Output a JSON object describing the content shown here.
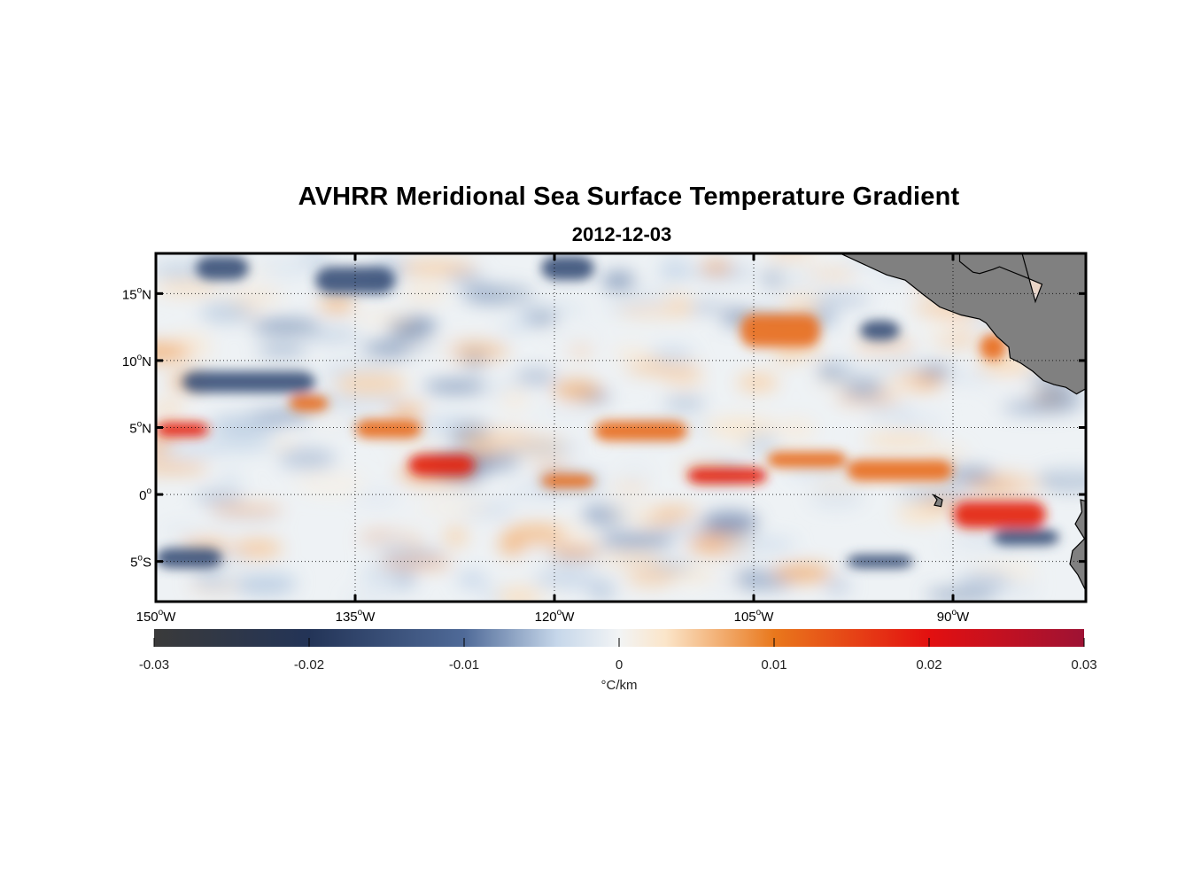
{
  "title": "AVHRR Meridional Sea Surface Temperature Gradient",
  "subtitle": "2012-12-03",
  "map": {
    "lon_range": [
      -150,
      -80
    ],
    "lat_range": [
      -8,
      18
    ],
    "grid": true,
    "land_color": "#808080",
    "lon_ticks": [
      {
        "value": -150,
        "deg": "150",
        "hemi": "W"
      },
      {
        "value": -135,
        "deg": "135",
        "hemi": "W"
      },
      {
        "value": -120,
        "deg": "120",
        "hemi": "W"
      },
      {
        "value": -105,
        "deg": "105",
        "hemi": "W"
      },
      {
        "value": -90,
        "deg": "90",
        "hemi": "W"
      }
    ],
    "lat_ticks": [
      {
        "value": 15,
        "deg": "15",
        "hemi": "N"
      },
      {
        "value": 10,
        "deg": "10",
        "hemi": "N"
      },
      {
        "value": 5,
        "deg": "5",
        "hemi": "N"
      },
      {
        "value": 0,
        "deg": "0",
        "hemi": ""
      },
      {
        "value": -5,
        "deg": "5",
        "hemi": "S"
      }
    ],
    "warm_front_bands": [
      {
        "lon": [
          -150,
          -146
        ],
        "lat": [
          4.3,
          5.4
        ]
      },
      {
        "lon": [
          -140,
          -137
        ],
        "lat": [
          6.2,
          7.4
        ]
      },
      {
        "lon": [
          -135,
          -130
        ],
        "lat": [
          4.2,
          5.6
        ]
      },
      {
        "lon": [
          -131,
          -126
        ],
        "lat": [
          1.4,
          3.0
        ]
      },
      {
        "lon": [
          -121,
          -117
        ],
        "lat": [
          0.5,
          1.5
        ]
      },
      {
        "lon": [
          -117,
          -110
        ],
        "lat": [
          4.0,
          5.5
        ]
      },
      {
        "lon": [
          -110,
          -104
        ],
        "lat": [
          0.8,
          2.0
        ]
      },
      {
        "lon": [
          -104,
          -98
        ],
        "lat": [
          2.0,
          3.2
        ]
      },
      {
        "lon": [
          -98,
          -90
        ],
        "lat": [
          1.0,
          2.6
        ]
      },
      {
        "lon": [
          -90,
          -83
        ],
        "lat": [
          -2.5,
          -0.5
        ]
      },
      {
        "lon": [
          -106,
          -100
        ],
        "lat": [
          11.0,
          13.5
        ]
      },
      {
        "lon": [
          -88,
          -86
        ],
        "lat": [
          10.0,
          12.0
        ]
      }
    ],
    "cold_front_bands": [
      {
        "lon": [
          -148,
          -138
        ],
        "lat": [
          7.6,
          9.2
        ]
      },
      {
        "lon": [
          -147,
          -143
        ],
        "lat": [
          16.0,
          17.8
        ]
      },
      {
        "lon": [
          -138,
          -132
        ],
        "lat": [
          15.0,
          17.0
        ]
      },
      {
        "lon": [
          -121,
          -117
        ],
        "lat": [
          16.0,
          17.8
        ]
      },
      {
        "lon": [
          -97,
          -94
        ],
        "lat": [
          11.5,
          13.0
        ]
      },
      {
        "lon": [
          -98,
          -93
        ],
        "lat": [
          -5.5,
          -4.5
        ]
      },
      {
        "lon": [
          -87,
          -82
        ],
        "lat": [
          -3.8,
          -2.6
        ]
      },
      {
        "lon": [
          -150,
          -145
        ],
        "lat": [
          -5.5,
          -4.0
        ]
      }
    ],
    "land_polygons": [
      {
        "name": "central-america",
        "points": [
          [
            -98.5,
            18
          ],
          [
            -95.0,
            16.4
          ],
          [
            -93.6,
            16.0
          ],
          [
            -92.2,
            14.9
          ],
          [
            -91.0,
            14.0
          ],
          [
            -89.4,
            13.4
          ],
          [
            -88.0,
            13.1
          ],
          [
            -87.5,
            12.8
          ],
          [
            -86.7,
            11.8
          ],
          [
            -85.8,
            11.0
          ],
          [
            -85.7,
            10.2
          ],
          [
            -84.9,
            9.8
          ],
          [
            -84.0,
            9.2
          ],
          [
            -83.2,
            8.5
          ],
          [
            -82.4,
            8.2
          ],
          [
            -81.5,
            8.0
          ],
          [
            -80.7,
            7.5
          ],
          [
            -80,
            7.9
          ],
          [
            -80,
            18
          ],
          [
            -89.5,
            18
          ],
          [
            -89.5,
            17.4
          ],
          [
            -88.5,
            16.6
          ],
          [
            -88.0,
            16.5
          ],
          [
            -87.0,
            16.8
          ],
          [
            -86.5,
            17.0
          ],
          [
            -84.5,
            16.2
          ],
          [
            -83.3,
            15.7
          ],
          [
            -83.8,
            14.4
          ],
          [
            -84.8,
            18
          ],
          [
            -86.0,
            18
          ],
          [
            -88.2,
            18
          ],
          [
            -89.2,
            18
          ]
        ]
      },
      {
        "name": "south-america",
        "points": [
          [
            -80,
            -0.5
          ],
          [
            -80.4,
            -0.4
          ],
          [
            -80.3,
            -1.3
          ],
          [
            -80.8,
            -2.2
          ],
          [
            -80.1,
            -3.3
          ],
          [
            -81.0,
            -4.2
          ],
          [
            -81.2,
            -5.2
          ],
          [
            -80.6,
            -6.0
          ],
          [
            -80.0,
            -7.2
          ],
          [
            -80,
            -8
          ]
        ]
      },
      {
        "name": "galapagos",
        "points": [
          [
            -91.5,
            0.0
          ],
          [
            -90.8,
            -0.4
          ],
          [
            -90.9,
            -0.9
          ],
          [
            -91.4,
            -0.8
          ],
          [
            -91.2,
            -0.4
          ]
        ]
      }
    ]
  },
  "colorbar": {
    "min": -0.03,
    "max": 0.03,
    "ticks": [
      {
        "value": -0.03,
        "label": "-0.03"
      },
      {
        "value": -0.02,
        "label": "-0.02"
      },
      {
        "value": -0.01,
        "label": "-0.01"
      },
      {
        "value": 0,
        "label": "0"
      },
      {
        "value": 0.01,
        "label": "0.01"
      },
      {
        "value": 0.02,
        "label": "0.02"
      },
      {
        "value": 0.03,
        "label": "0.03"
      }
    ],
    "unit_label": "°C/km",
    "stops": [
      {
        "value": -0.03,
        "color": "#3a3a3a"
      },
      {
        "value": -0.02,
        "color": "#233457"
      },
      {
        "value": -0.01,
        "color": "#4f6a98"
      },
      {
        "value": -0.004,
        "color": "#c6d7ea"
      },
      {
        "value": 0,
        "color": "#f2f4f5"
      },
      {
        "value": 0.003,
        "color": "#fbe5c9"
      },
      {
        "value": 0.01,
        "color": "#e9781c"
      },
      {
        "value": 0.02,
        "color": "#e31010"
      },
      {
        "value": 0.03,
        "color": "#9e1234"
      }
    ]
  }
}
